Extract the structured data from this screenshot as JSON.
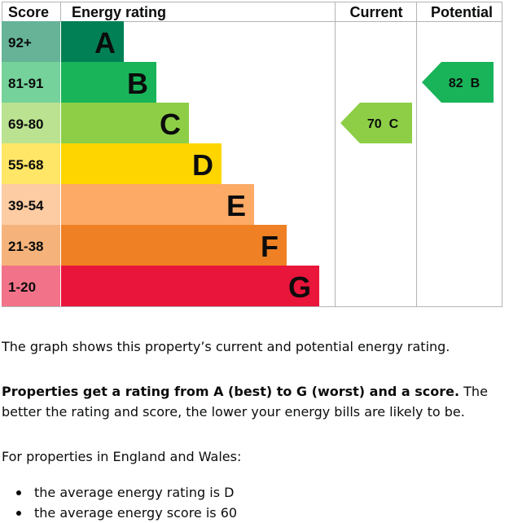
{
  "chart_data": {
    "type": "bar",
    "headers": {
      "score": "Score",
      "rating": "Energy rating",
      "current": "Current",
      "potential": "Potential"
    },
    "bands": [
      {
        "score": "92+",
        "letter": "A",
        "color": "#008054",
        "score_bg": "#66b398"
      },
      {
        "score": "81-91",
        "letter": "B",
        "color": "#19b459",
        "score_bg": "#75d29b"
      },
      {
        "score": "69-80",
        "letter": "C",
        "color": "#8dce46",
        "score_bg": "#bbe290"
      },
      {
        "score": "55-68",
        "letter": "D",
        "color": "#ffd500",
        "score_bg": "#ffe666"
      },
      {
        "score": "39-54",
        "letter": "E",
        "color": "#fcaa65",
        "score_bg": "#fdcca3"
      },
      {
        "score": "21-38",
        "letter": "F",
        "color": "#ef8023",
        "score_bg": "#f5b37b"
      },
      {
        "score": "1-20",
        "letter": "G",
        "color": "#e9153b",
        "score_bg": "#f27389"
      }
    ],
    "current": {
      "value": 70,
      "letter": "C",
      "label": "70  C"
    },
    "potential": {
      "value": 82,
      "letter": "B",
      "label": "82  B"
    }
  },
  "text": {
    "graph_shows": "The graph shows this property’s current and potential energy rating.",
    "rating_bold": "Properties get a rating from A (best) to G (worst) and a score.",
    "rating_rest": " The better the rating and score, the lower your energy bills are likely to be.",
    "england_wales": "For properties in England and Wales:",
    "bullets": [
      "the average energy rating is D",
      "the average energy score is 60"
    ]
  }
}
